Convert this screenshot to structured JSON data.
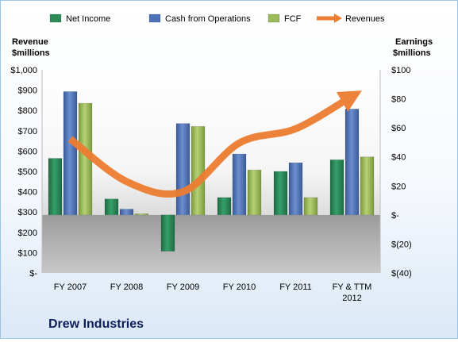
{
  "chart_data": {
    "type": "bar",
    "title": "Drew Industries",
    "categories": [
      "FY 2007",
      "FY 2008",
      "FY 2009",
      "FY 2010",
      "FY 2011",
      "FY & TTM 2012"
    ],
    "category_lines": [
      [
        "FY 2007"
      ],
      [
        "FY 2008"
      ],
      [
        "FY 2009"
      ],
      [
        "FY 2010"
      ],
      [
        "FY 2011"
      ],
      [
        "FY & TTM",
        "2012"
      ]
    ],
    "left_axis": {
      "label_lines": [
        "Revenue",
        "$millions"
      ],
      "ylim": [
        0,
        1000
      ],
      "ticks": [
        0,
        100,
        200,
        300,
        400,
        500,
        600,
        700,
        800,
        900,
        1000
      ],
      "tick_labels": [
        "$-",
        "$100",
        "$200",
        "$300",
        "$400",
        "$500",
        "$600",
        "$700",
        "$800",
        "$900",
        "$1,000"
      ]
    },
    "right_axis": {
      "label_lines": [
        "Earnings",
        "$millions"
      ],
      "ylim": [
        -40,
        100
      ],
      "ticks": [
        -40,
        -20,
        0,
        20,
        40,
        60,
        80,
        100
      ],
      "tick_labels": [
        "$(40)",
        "$(20)",
        "$-",
        "$20",
        "$40",
        "$60",
        "$80",
        "$100"
      ]
    },
    "series": [
      {
        "name": "Net Income",
        "type": "bar",
        "axis": "right",
        "color": "#2e8b57",
        "values": [
          39,
          11,
          -25,
          12,
          30,
          38
        ]
      },
      {
        "name": "Cash from Operations",
        "type": "bar",
        "axis": "right",
        "color": "#4f73b8",
        "values": [
          85,
          4,
          63,
          42,
          36,
          73
        ]
      },
      {
        "name": "FCF",
        "type": "bar",
        "axis": "right",
        "color": "#9bbb59",
        "values": [
          77,
          0,
          61,
          31,
          12,
          40
        ]
      },
      {
        "name": "Revenues",
        "type": "line",
        "axis": "left",
        "color": "#ed7d31",
        "values": [
          660,
          450,
          400,
          640,
          710,
          870
        ]
      }
    ],
    "legend_position": "top",
    "grid": false
  }
}
